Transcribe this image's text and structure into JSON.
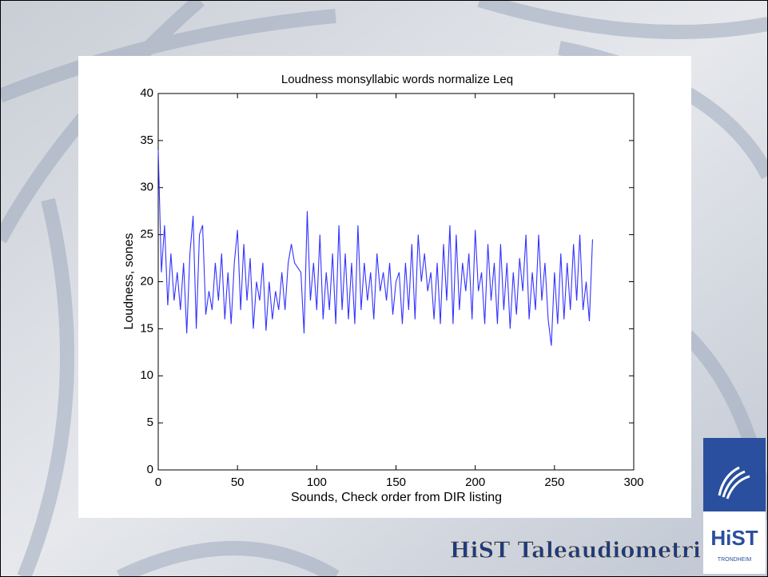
{
  "chart_data": {
    "type": "line",
    "title": "Loudness monsyllabic words normalize Leq",
    "xlabel": "Sounds, Check order from DIR listing",
    "ylabel": "Loudness, sones",
    "x": [
      0,
      2,
      4,
      6,
      8,
      10,
      12,
      14,
      16,
      18,
      20,
      22,
      24,
      26,
      28,
      30,
      32,
      34,
      36,
      38,
      40,
      42,
      44,
      46,
      48,
      50,
      52,
      54,
      56,
      58,
      60,
      62,
      64,
      66,
      68,
      70,
      72,
      74,
      76,
      78,
      80,
      82,
      84,
      86,
      88,
      90,
      92,
      94,
      96,
      98,
      100,
      102,
      104,
      106,
      108,
      110,
      112,
      114,
      116,
      118,
      120,
      122,
      124,
      126,
      128,
      130,
      132,
      134,
      136,
      138,
      140,
      142,
      144,
      146,
      148,
      150,
      152,
      154,
      156,
      158,
      160,
      162,
      164,
      166,
      168,
      170,
      172,
      174,
      176,
      178,
      180,
      182,
      184,
      186,
      188,
      190,
      192,
      194,
      196,
      198,
      200,
      202,
      204,
      206,
      208,
      210,
      212,
      214,
      216,
      218,
      220,
      222,
      224,
      226,
      228,
      230,
      232,
      234,
      236,
      238,
      240,
      242,
      244,
      246,
      248,
      250,
      252,
      254,
      256,
      258,
      260,
      262,
      264,
      266,
      268,
      270,
      272,
      274
    ],
    "series": [
      {
        "name": "Loudness",
        "color": "#3333ff",
        "values": [
          34,
          21,
          26,
          17.5,
          23,
          18,
          21,
          17,
          22,
          14.5,
          23,
          27,
          15,
          25,
          26,
          16.5,
          19,
          17,
          22,
          18,
          23,
          16,
          21,
          15.5,
          22,
          25.5,
          17,
          24,
          18,
          22.5,
          15,
          20,
          18,
          22,
          14.8,
          20,
          16,
          19,
          17,
          21,
          17,
          22,
          24,
          22,
          21.5,
          21,
          14.5,
          27.5,
          18,
          22,
          17,
          25,
          16,
          21,
          17,
          23,
          15.5,
          26,
          17,
          23,
          16,
          22,
          15.5,
          26,
          17,
          22,
          18,
          21,
          16,
          23,
          19,
          21,
          18,
          22,
          16.5,
          20,
          21,
          15.5,
          22,
          17,
          24,
          16,
          25,
          20,
          23,
          19,
          21,
          16,
          22,
          15.5,
          24,
          18,
          26,
          15.5,
          25,
          17,
          22,
          19,
          23,
          16,
          25.5,
          19,
          21,
          15.5,
          24,
          18,
          22,
          15.5,
          24,
          17,
          22,
          15,
          21,
          16.5,
          22.5,
          19,
          25,
          16,
          21,
          17,
          25,
          18,
          22,
          16,
          13.2,
          21,
          15.5,
          23,
          16,
          22,
          17,
          24,
          18,
          25,
          17,
          20,
          15.8,
          24.5
        ]
      }
    ],
    "xlim": [
      0,
      300
    ],
    "xticks": [
      0,
      50,
      100,
      150,
      200,
      250,
      300
    ],
    "ylim": [
      0,
      40
    ],
    "yticks": [
      0,
      5,
      10,
      15,
      20,
      25,
      30,
      35,
      40
    ]
  },
  "footer": {
    "brand": "HiST Taleaudiometri",
    "logo_name": "HiST",
    "logo_city": "TRONDHEIM"
  }
}
